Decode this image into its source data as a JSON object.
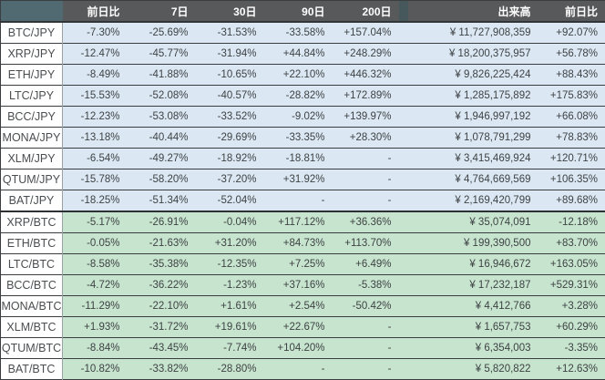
{
  "colors": {
    "header_bg": "#58595b",
    "header_text": "#ffffff",
    "corner_bg": "#516a71",
    "separator_bg": "#527077",
    "jpy_row_bg": "#dbe8f4",
    "btc_row_bg": "#c7e4ce",
    "label_bg": "#ffffff",
    "text": "#3e4244",
    "border": "#3b3e40"
  },
  "table": {
    "headers": {
      "pair": "",
      "change_1d": "前日比",
      "change_7d": "7日",
      "change_30d": "30日",
      "change_90d": "90日",
      "change_200d": "200日",
      "volume": "出来高",
      "volume_change_1d": "前日比"
    },
    "rows": [
      {
        "pair": "BTC/JPY",
        "section": "jpy",
        "change_1d": "-7.30%",
        "change_7d": "-25.69%",
        "change_30d": "-31.53%",
        "change_90d": "-33.58%",
        "change_200d": "+157.04%",
        "volume": "¥ 11,727,908,359",
        "volume_change_1d": "+92.07%"
      },
      {
        "pair": "XRP/JPY",
        "section": "jpy",
        "change_1d": "-12.47%",
        "change_7d": "-45.77%",
        "change_30d": "-31.94%",
        "change_90d": "+44.84%",
        "change_200d": "+248.29%",
        "volume": "¥ 18,200,375,957",
        "volume_change_1d": "+56.78%"
      },
      {
        "pair": "ETH/JPY",
        "section": "jpy",
        "change_1d": "-8.49%",
        "change_7d": "-41.88%",
        "change_30d": "-10.65%",
        "change_90d": "+22.10%",
        "change_200d": "+446.32%",
        "volume": "¥ 9,826,225,424",
        "volume_change_1d": "+88.43%"
      },
      {
        "pair": "LTC/JPY",
        "section": "jpy",
        "change_1d": "-15.53%",
        "change_7d": "-52.08%",
        "change_30d": "-40.57%",
        "change_90d": "-28.82%",
        "change_200d": "+172.89%",
        "volume": "¥ 1,285,175,892",
        "volume_change_1d": "+175.83%"
      },
      {
        "pair": "BCC/JPY",
        "section": "jpy",
        "change_1d": "-12.23%",
        "change_7d": "-53.08%",
        "change_30d": "-33.52%",
        "change_90d": "-9.02%",
        "change_200d": "+139.97%",
        "volume": "¥ 1,946,997,192",
        "volume_change_1d": "+66.08%"
      },
      {
        "pair": "MONA/JPY",
        "section": "jpy",
        "change_1d": "-13.18%",
        "change_7d": "-40.44%",
        "change_30d": "-29.69%",
        "change_90d": "-33.35%",
        "change_200d": "+28.30%",
        "volume": "¥ 1,078,791,299",
        "volume_change_1d": "+78.83%"
      },
      {
        "pair": "XLM/JPY",
        "section": "jpy",
        "change_1d": "-6.54%",
        "change_7d": "-49.27%",
        "change_30d": "-18.92%",
        "change_90d": "-18.81%",
        "change_200d": "-",
        "volume": "¥ 3,415,469,924",
        "volume_change_1d": "+120.71%"
      },
      {
        "pair": "QTUM/JPY",
        "section": "jpy",
        "change_1d": "-15.78%",
        "change_7d": "-58.20%",
        "change_30d": "-37.20%",
        "change_90d": "+31.92%",
        "change_200d": "-",
        "volume": "¥ 4,764,669,569",
        "volume_change_1d": "+106.35%"
      },
      {
        "pair": "BAT/JPY",
        "section": "jpy",
        "change_1d": "-18.25%",
        "change_7d": "-51.34%",
        "change_30d": "-52.04%",
        "change_90d": "-",
        "change_200d": "-",
        "volume": "¥ 2,169,420,799",
        "volume_change_1d": "+89.68%"
      },
      {
        "pair": "XRP/BTC",
        "section": "btc",
        "change_1d": "-5.17%",
        "change_7d": "-26.91%",
        "change_30d": "-0.04%",
        "change_90d": "+117.12%",
        "change_200d": "+36.36%",
        "volume": "¥ 35,074,091",
        "volume_change_1d": "-12.18%"
      },
      {
        "pair": "ETH/BTC",
        "section": "btc",
        "change_1d": "-0.05%",
        "change_7d": "-21.63%",
        "change_30d": "+31.20%",
        "change_90d": "+84.73%",
        "change_200d": "+113.70%",
        "volume": "¥ 199,390,500",
        "volume_change_1d": "+83.70%"
      },
      {
        "pair": "LTC/BTC",
        "section": "btc",
        "change_1d": "-8.58%",
        "change_7d": "-35.38%",
        "change_30d": "-12.35%",
        "change_90d": "+7.25%",
        "change_200d": "+6.49%",
        "volume": "¥ 16,946,672",
        "volume_change_1d": "+163.05%"
      },
      {
        "pair": "BCC/BTC",
        "section": "btc",
        "change_1d": "-4.72%",
        "change_7d": "-36.22%",
        "change_30d": "-1.23%",
        "change_90d": "+37.16%",
        "change_200d": "-5.38%",
        "volume": "¥ 17,232,187",
        "volume_change_1d": "+529.31%"
      },
      {
        "pair": "MONA/BTC",
        "section": "btc",
        "change_1d": "-11.29%",
        "change_7d": "-22.10%",
        "change_30d": "+1.61%",
        "change_90d": "+2.54%",
        "change_200d": "-50.42%",
        "volume": "¥ 4,412,766",
        "volume_change_1d": "+3.28%"
      },
      {
        "pair": "XLM/BTC",
        "section": "btc",
        "change_1d": "+1.93%",
        "change_7d": "-31.72%",
        "change_30d": "+19.61%",
        "change_90d": "+22.67%",
        "change_200d": "-",
        "volume": "¥ 1,657,753",
        "volume_change_1d": "+60.29%"
      },
      {
        "pair": "QTUM/BTC",
        "section": "btc",
        "change_1d": "-8.84%",
        "change_7d": "-43.45%",
        "change_30d": "-7.74%",
        "change_90d": "+104.20%",
        "change_200d": "-",
        "volume": "¥ 6,354,003",
        "volume_change_1d": "-3.35%"
      },
      {
        "pair": "BAT/BTC",
        "section": "btc",
        "change_1d": "-10.82%",
        "change_7d": "-33.82%",
        "change_30d": "-28.80%",
        "change_90d": "-",
        "change_200d": "-",
        "volume": "¥ 5,820,822",
        "volume_change_1d": "+12.63%"
      }
    ]
  }
}
